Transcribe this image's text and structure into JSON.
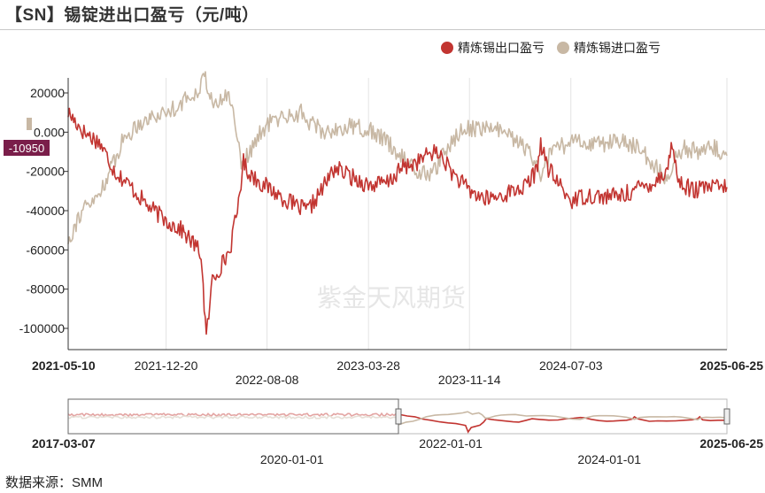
{
  "title": "【SN】锡锭进出口盈亏（元/吨）",
  "source": "数据来源：SMM",
  "watermark": "紫金天风期货",
  "colors": {
    "export": "#c23531",
    "import": "#c8b8a4",
    "crosshair_label_bg": "#7a1e4a"
  },
  "chart_data": {
    "type": "line",
    "title": "【SN】锡锭进出口盈亏（元/吨）",
    "xlabel": "",
    "ylabel": "",
    "x_range": [
      "2021-05-10",
      "2025-06-25"
    ],
    "ylim": [
      -110000,
      30000
    ],
    "yticks": [
      20000,
      0,
      -20000,
      -40000,
      -60000,
      -80000,
      -100000
    ],
    "ytick_labels": [
      "20000",
      "0.000",
      "-20000",
      "-40000",
      "-60000",
      "-80000",
      "-100000"
    ],
    "xtick_labels_top": [
      "2021-05-10",
      "2021-12-20",
      "2023-03-28",
      "2024-07-03",
      "2025-06-25"
    ],
    "xtick_labels_bottom": [
      "2022-08-08",
      "2023-11-14"
    ],
    "crosshair_label": "-10950",
    "legend_position": "top-right",
    "grid": "vertical",
    "series": [
      {
        "name": "精炼锡出口盈亏",
        "points": [
          [
            "2021-05-10",
            10000
          ],
          [
            "2021-06-15",
            0
          ],
          [
            "2021-07-20",
            -5000
          ],
          [
            "2021-08-25",
            -20000
          ],
          [
            "2021-10-01",
            -28000
          ],
          [
            "2021-11-10",
            -38000
          ],
          [
            "2021-12-20",
            -45000
          ],
          [
            "2022-01-25",
            -50000
          ],
          [
            "2022-02-25",
            -58000
          ],
          [
            "2022-03-10",
            -62000
          ],
          [
            "2022-03-22",
            -105000
          ],
          [
            "2022-04-05",
            -75000
          ],
          [
            "2022-04-25",
            -68000
          ],
          [
            "2022-05-15",
            -60000
          ],
          [
            "2022-06-01",
            -40000
          ],
          [
            "2022-06-15",
            -15000
          ],
          [
            "2022-06-25",
            -20000
          ],
          [
            "2022-07-20",
            -25000
          ],
          [
            "2022-08-08",
            -28000
          ],
          [
            "2022-09-10",
            -33000
          ],
          [
            "2022-10-15",
            -38000
          ],
          [
            "2022-11-10",
            -40000
          ],
          [
            "2022-12-15",
            -28000
          ],
          [
            "2023-01-10",
            -18000
          ],
          [
            "2023-02-10",
            -22000
          ],
          [
            "2023-03-10",
            -25000
          ],
          [
            "2023-03-28",
            -27000
          ],
          [
            "2023-05-10",
            -26000
          ],
          [
            "2023-06-15",
            -18000
          ],
          [
            "2023-07-20",
            -15000
          ],
          [
            "2023-08-20",
            -10000
          ],
          [
            "2023-09-10",
            -12000
          ],
          [
            "2023-10-10",
            -22000
          ],
          [
            "2023-11-14",
            -30000
          ],
          [
            "2023-12-20",
            -34000
          ],
          [
            "2024-01-20",
            -33000
          ],
          [
            "2024-02-20",
            -30000
          ],
          [
            "2024-03-20",
            -28000
          ],
          [
            "2024-04-15",
            -20000
          ],
          [
            "2024-04-25",
            -5000
          ],
          [
            "2024-05-10",
            -18000
          ],
          [
            "2024-06-01",
            -25000
          ],
          [
            "2024-07-03",
            -35000
          ],
          [
            "2024-08-10",
            -32000
          ],
          [
            "2024-09-20",
            -33000
          ],
          [
            "2024-11-01",
            -32000
          ],
          [
            "2024-12-10",
            -28000
          ],
          [
            "2025-01-15",
            -25000
          ],
          [
            "2025-02-10",
            -18000
          ],
          [
            "2025-02-20",
            -5000
          ],
          [
            "2025-03-05",
            -25000
          ],
          [
            "2025-04-10",
            -30000
          ],
          [
            "2025-05-15",
            -28000
          ],
          [
            "2025-06-25",
            -28000
          ]
        ]
      },
      {
        "name": "精炼锡进口盈亏",
        "points": [
          [
            "2021-05-10",
            -55000
          ],
          [
            "2021-06-10",
            -40000
          ],
          [
            "2021-07-10",
            -35000
          ],
          [
            "2021-08-10",
            -22000
          ],
          [
            "2021-09-10",
            -5000
          ],
          [
            "2021-10-20",
            5000
          ],
          [
            "2021-11-20",
            8000
          ],
          [
            "2021-12-20",
            10000
          ],
          [
            "2022-01-25",
            15000
          ],
          [
            "2022-02-25",
            20000
          ],
          [
            "2022-03-10",
            25000
          ],
          [
            "2022-03-20",
            28000
          ],
          [
            "2022-04-10",
            12000
          ],
          [
            "2022-05-10",
            20000
          ],
          [
            "2022-05-25",
            8000
          ],
          [
            "2022-06-10",
            -15000
          ],
          [
            "2022-06-25",
            -12000
          ],
          [
            "2022-07-25",
            0
          ],
          [
            "2022-08-20",
            6000
          ],
          [
            "2022-09-20",
            8000
          ],
          [
            "2022-10-25",
            10000
          ],
          [
            "2022-11-15",
            5000
          ],
          [
            "2022-12-15",
            0
          ],
          [
            "2023-01-25",
            2000
          ],
          [
            "2023-03-01",
            3000
          ],
          [
            "2023-03-28",
            1000
          ],
          [
            "2023-05-01",
            -3000
          ],
          [
            "2023-06-10",
            -12000
          ],
          [
            "2023-07-15",
            -20000
          ],
          [
            "2023-08-20",
            -22000
          ],
          [
            "2023-09-20",
            -10000
          ],
          [
            "2023-10-20",
            0
          ],
          [
            "2023-11-14",
            2000
          ],
          [
            "2023-12-20",
            2000
          ],
          [
            "2024-01-20",
            1000
          ],
          [
            "2024-02-20",
            -3000
          ],
          [
            "2024-03-20",
            -8000
          ],
          [
            "2024-04-10",
            -15000
          ],
          [
            "2024-04-25",
            -22000
          ],
          [
            "2024-05-20",
            -10000
          ],
          [
            "2024-07-03",
            -5000
          ],
          [
            "2024-08-10",
            -5000
          ],
          [
            "2024-09-20",
            -6000
          ],
          [
            "2024-10-25",
            -4000
          ],
          [
            "2024-11-25",
            -7000
          ],
          [
            "2024-12-20",
            -12000
          ],
          [
            "2025-01-15",
            -18000
          ],
          [
            "2025-02-10",
            -25000
          ],
          [
            "2025-02-25",
            -12000
          ],
          [
            "2025-03-20",
            -8000
          ],
          [
            "2025-04-20",
            -10000
          ],
          [
            "2025-05-25",
            -8000
          ],
          [
            "2025-06-25",
            -12000
          ]
        ]
      }
    ],
    "navigator": {
      "range": [
        "2017-03-07",
        "2025-06-25"
      ],
      "selection": [
        "2017-03-07",
        "2021-05-10"
      ],
      "tick_labels_top": [
        "2017-03-07",
        "2022-01-01",
        "2025-06-25"
      ],
      "tick_labels_bottom": [
        "2020-01-01",
        "2024-01-01"
      ]
    }
  }
}
